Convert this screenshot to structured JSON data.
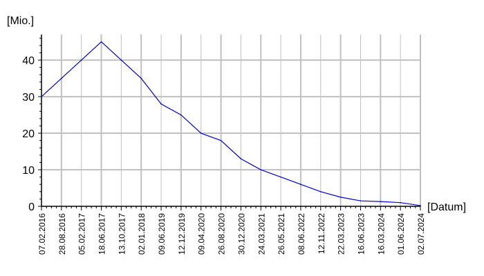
{
  "chart_data": {
    "type": "line",
    "ylabel": "[Mio.]",
    "xlabel": "[Datum]",
    "ylim": [
      0,
      47
    ],
    "y_ticks": [
      0,
      10,
      20,
      30,
      40
    ],
    "grid": true,
    "categories": [
      "07.02.2016",
      "28.08.2016",
      "05.02.2017",
      "18.06.2017",
      "13.10.2017",
      "02.01.2018",
      "09.06.2019",
      "12.12.2019",
      "09.04.2020",
      "26.08.2020",
      "30.12.2020",
      "24.03.2021",
      "26.05.2021",
      "08.06.2022",
      "12.11.2022",
      "22.03.2023",
      "16.06.2023",
      "16.03.2024",
      "01.06.2024",
      "02.07.2024"
    ],
    "series": [
      {
        "values": [
          30,
          35,
          40,
          45,
          40,
          35,
          28,
          25,
          20,
          18,
          13,
          10,
          8,
          6,
          4,
          2.5,
          1.5,
          1.3,
          1,
          0.2
        ]
      }
    ],
    "colors": {
      "line": "#0000cc",
      "grid": "#c0c0c0",
      "axis": "#000000"
    }
  }
}
